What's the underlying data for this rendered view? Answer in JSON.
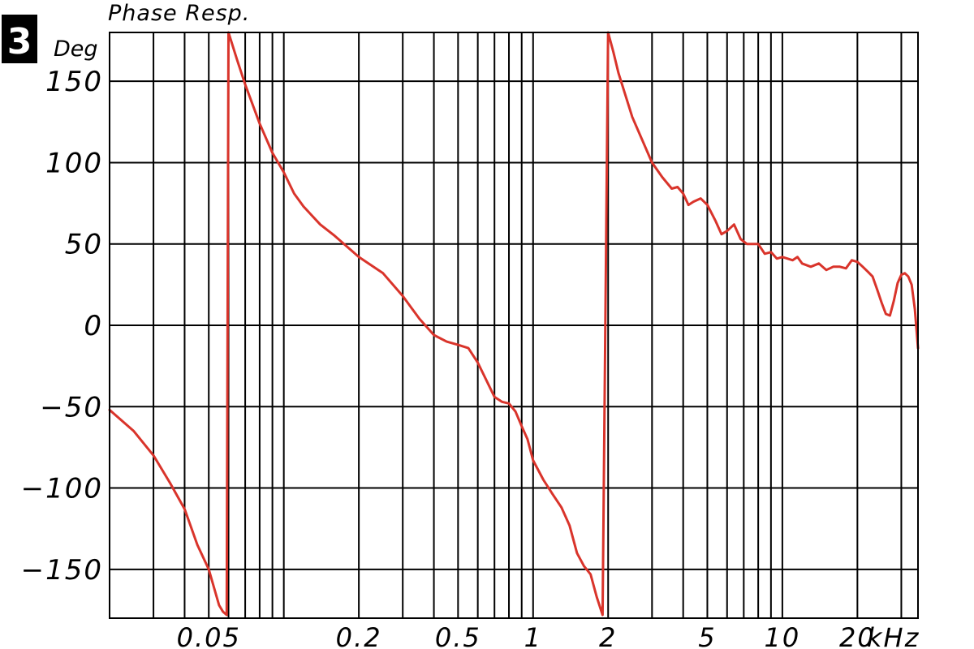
{
  "badge": "3",
  "chart_data": {
    "type": "line",
    "title": "Phase Resp.",
    "ylabel": "Deg",
    "xlabel": "",
    "x_unit": "kHz",
    "x_scale": "log",
    "xlim": [
      0.02,
      35
    ],
    "ylim": [
      -180,
      180
    ],
    "grid": true,
    "line_color": "#d9342b",
    "y_ticks": [
      {
        "value": 150,
        "label": "150"
      },
      {
        "value": 100,
        "label": "100"
      },
      {
        "value": 50,
        "label": "50"
      },
      {
        "value": 0,
        "label": "0"
      },
      {
        "value": -50,
        "label": "−50"
      },
      {
        "value": -100,
        "label": "−100"
      },
      {
        "value": -150,
        "label": "−150"
      }
    ],
    "x_ticks": [
      {
        "value": 0.05,
        "label": "0.05"
      },
      {
        "value": 0.2,
        "label": "0.2"
      },
      {
        "value": 0.5,
        "label": "0.5"
      },
      {
        "value": 1,
        "label": "1"
      },
      {
        "value": 2,
        "label": "2"
      },
      {
        "value": 5,
        "label": "5"
      },
      {
        "value": 10,
        "label": "10"
      },
      {
        "value": 20,
        "label": "20"
      }
    ],
    "x_gridlines": [
      0.03,
      0.04,
      0.05,
      0.06,
      0.07,
      0.08,
      0.09,
      0.1,
      0.2,
      0.3,
      0.4,
      0.5,
      0.6,
      0.7,
      0.8,
      0.9,
      1,
      2,
      3,
      4,
      5,
      6,
      7,
      8,
      9,
      10,
      20,
      30
    ],
    "series": [
      {
        "name": "",
        "segments": [
          [
            [
              0.02,
              -52
            ],
            [
              0.025,
              -65
            ],
            [
              0.03,
              -80
            ],
            [
              0.035,
              -97
            ],
            [
              0.04,
              -113
            ],
            [
              0.045,
              -135
            ],
            [
              0.05,
              -150
            ],
            [
              0.055,
              -172
            ],
            [
              0.057,
              -176
            ],
            [
              0.059,
              -178
            ]
          ],
          [
            [
              0.06,
              180
            ],
            [
              0.065,
              163
            ],
            [
              0.07,
              148
            ],
            [
              0.08,
              124
            ],
            [
              0.09,
              106
            ],
            [
              0.1,
              94
            ],
            [
              0.11,
              81
            ],
            [
              0.12,
              73
            ],
            [
              0.14,
              62
            ],
            [
              0.16,
              55
            ],
            [
              0.2,
              42
            ],
            [
              0.25,
              32
            ],
            [
              0.3,
              18
            ],
            [
              0.35,
              4
            ],
            [
              0.4,
              -6
            ],
            [
              0.45,
              -10
            ],
            [
              0.5,
              -12
            ],
            [
              0.55,
              -14
            ],
            [
              0.6,
              -23
            ],
            [
              0.7,
              -44
            ],
            [
              0.75,
              -47
            ],
            [
              0.8,
              -48
            ],
            [
              0.85,
              -53
            ],
            [
              0.9,
              -62
            ],
            [
              0.95,
              -70
            ],
            [
              1.0,
              -83
            ],
            [
              1.1,
              -95
            ],
            [
              1.2,
              -104
            ],
            [
              1.3,
              -112
            ],
            [
              1.4,
              -123
            ],
            [
              1.5,
              -140
            ],
            [
              1.6,
              -148
            ],
            [
              1.7,
              -153
            ],
            [
              1.8,
              -167
            ],
            [
              1.9,
              -178
            ]
          ],
          [
            [
              2.0,
              180
            ],
            [
              2.1,
              168
            ],
            [
              2.2,
              155
            ],
            [
              2.5,
              128
            ],
            [
              3.0,
              100
            ],
            [
              3.3,
              91
            ],
            [
              3.6,
              84
            ],
            [
              3.8,
              85
            ],
            [
              4.0,
              81
            ],
            [
              4.2,
              74
            ],
            [
              4.4,
              76
            ],
            [
              4.7,
              78
            ],
            [
              5.0,
              74
            ],
            [
              5.4,
              64
            ],
            [
              5.7,
              56
            ],
            [
              6.0,
              58
            ],
            [
              6.4,
              62
            ],
            [
              6.8,
              53
            ],
            [
              7.2,
              50
            ],
            [
              8.0,
              50
            ],
            [
              8.5,
              44
            ],
            [
              9.0,
              45
            ],
            [
              9.5,
              41
            ],
            [
              10,
              42
            ],
            [
              10.5,
              41
            ],
            [
              11,
              40
            ],
            [
              11.5,
              42
            ],
            [
              12,
              38
            ],
            [
              13,
              36
            ],
            [
              14,
              38
            ],
            [
              15,
              34
            ],
            [
              16,
              36
            ],
            [
              17,
              36
            ],
            [
              18,
              35
            ],
            [
              19,
              40
            ],
            [
              20,
              39
            ],
            [
              21,
              36
            ],
            [
              22,
              33
            ],
            [
              23,
              30
            ],
            [
              24,
              22
            ],
            [
              25,
              14
            ],
            [
              26,
              7
            ],
            [
              27,
              6
            ],
            [
              28,
              15
            ],
            [
              29,
              26
            ],
            [
              30,
              31
            ],
            [
              31,
              32
            ],
            [
              32,
              30
            ],
            [
              33,
              25
            ],
            [
              34,
              10
            ],
            [
              35,
              -14
            ]
          ]
        ]
      }
    ]
  }
}
